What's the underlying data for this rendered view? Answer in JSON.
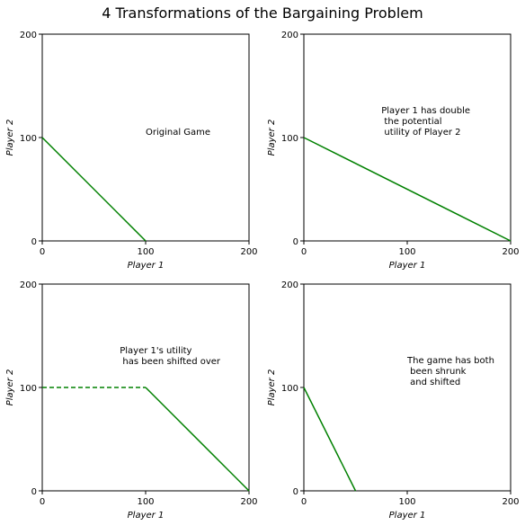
{
  "figure": {
    "title": "4 Transformations of the Bargaining Problem"
  },
  "chart_data": [
    {
      "type": "line",
      "xlabel": "Player 1",
      "ylabel": "Player 2",
      "xlim": [
        0,
        200
      ],
      "ylim": [
        0,
        200
      ],
      "xticks": [
        "0",
        "100",
        "200"
      ],
      "yticks": [
        "0",
        "100",
        "200"
      ],
      "grid": false,
      "color": "#008000",
      "annotation": {
        "x": 100,
        "y": 100,
        "lines": [
          "Original Game"
        ]
      },
      "series": [
        {
          "style": "solid",
          "points": [
            [
              0,
              100
            ],
            [
              100,
              0
            ]
          ]
        }
      ]
    },
    {
      "type": "line",
      "xlabel": "Player 1",
      "ylabel": "Player 2",
      "xlim": [
        0,
        200
      ],
      "ylim": [
        0,
        200
      ],
      "xticks": [
        "0",
        "100",
        "200"
      ],
      "yticks": [
        "0",
        "100",
        "200"
      ],
      "grid": false,
      "color": "#008000",
      "annotation": {
        "x": 75,
        "y": 100,
        "lines": [
          "Player 1 has double",
          " the potential",
          " utility of Player 2"
        ]
      },
      "series": [
        {
          "style": "solid",
          "points": [
            [
              0,
              100
            ],
            [
              200,
              0
            ]
          ]
        }
      ]
    },
    {
      "type": "line",
      "xlabel": "Player 1",
      "ylabel": "Player 2",
      "xlim": [
        0,
        200
      ],
      "ylim": [
        0,
        200
      ],
      "xticks": [
        "0",
        "100",
        "200"
      ],
      "yticks": [
        "0",
        "100",
        "200"
      ],
      "grid": false,
      "color": "#008000",
      "annotation": {
        "x": 75,
        "y": 120,
        "lines": [
          "Player 1's utility",
          " has been shifted over"
        ]
      },
      "series": [
        {
          "style": "dashed",
          "points": [
            [
              0,
              100
            ],
            [
              100,
              100
            ]
          ]
        },
        {
          "style": "solid",
          "points": [
            [
              100,
              100
            ],
            [
              200,
              0
            ]
          ]
        }
      ]
    },
    {
      "type": "line",
      "xlabel": "Player 1",
      "ylabel": "Player 2",
      "xlim": [
        0,
        200
      ],
      "ylim": [
        0,
        200
      ],
      "xticks": [
        "0",
        "100",
        "200"
      ],
      "yticks": [
        "0",
        "100",
        "200"
      ],
      "grid": false,
      "color": "#008000",
      "annotation": {
        "x": 100,
        "y": 100,
        "lines": [
          "The game has both",
          " been shrunk",
          " and shifted"
        ]
      },
      "series": [
        {
          "style": "solid",
          "points": [
            [
              0,
              100
            ],
            [
              50,
              0
            ]
          ]
        }
      ]
    }
  ]
}
